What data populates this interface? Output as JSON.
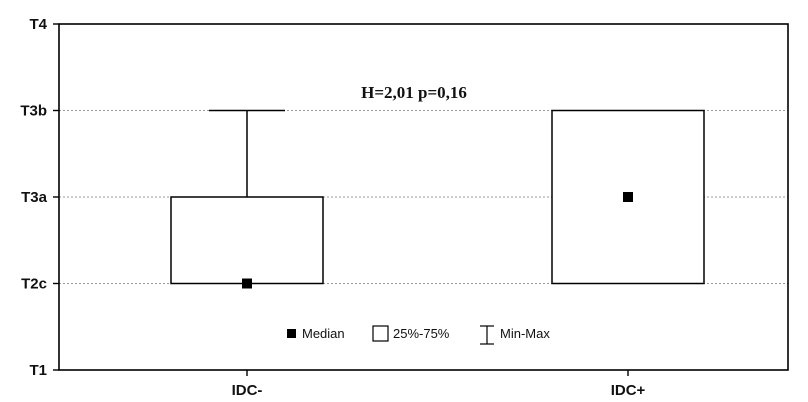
{
  "chart_data": {
    "type": "box",
    "y_axis": {
      "tick_labels": [
        "T1",
        "T2c",
        "T3a",
        "T3b",
        "T4"
      ],
      "ylim": [
        0,
        4
      ],
      "grid": true
    },
    "categories": [
      "IDC-",
      "IDC+"
    ],
    "series": [
      {
        "category": "IDC-",
        "median": 1,
        "q1": 1,
        "q3": 2,
        "min": 1,
        "max": 3
      },
      {
        "category": "IDC+",
        "median": 2,
        "q1": 1,
        "q3": 3,
        "min": 1,
        "max": 3
      }
    ],
    "annotation": "H=2,01 p=0,16",
    "legend": {
      "entries": [
        "Median",
        "25%-75%",
        "Min-Max"
      ]
    }
  }
}
